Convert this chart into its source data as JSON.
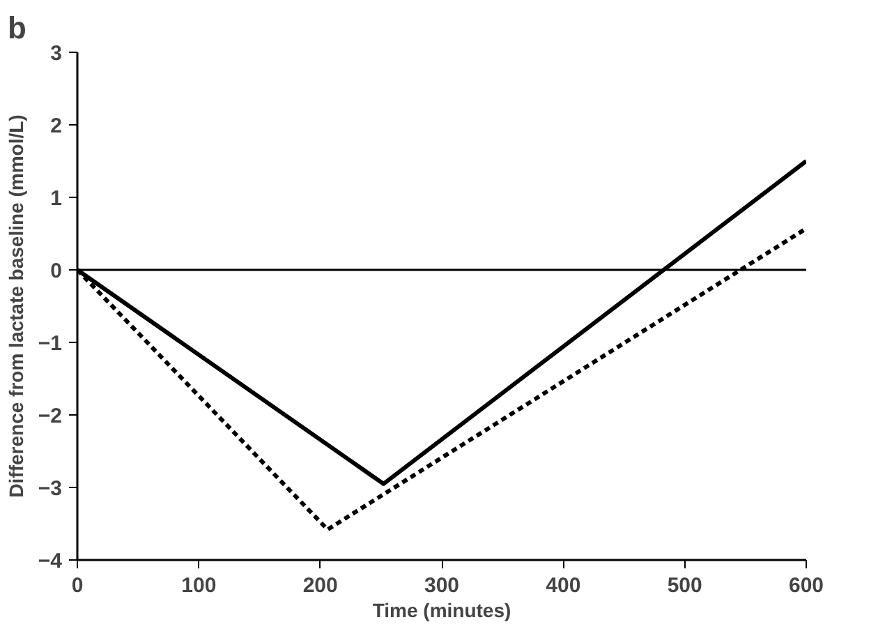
{
  "chart_data": {
    "type": "line",
    "title": "b",
    "xlabel": "Time (minutes)",
    "ylabel": "Difference from lactate baseline (mmol/L)",
    "xlim": [
      0,
      600
    ],
    "ylim": [
      -4,
      3
    ],
    "xticks": [
      0,
      100,
      200,
      300,
      400,
      500,
      600
    ],
    "yticks": [
      -4,
      -3,
      -2,
      -1,
      0,
      1,
      2,
      3
    ],
    "grid": false,
    "marker": "none",
    "ref_lines": [
      {
        "axis": "y",
        "value": 0,
        "color": "#000000"
      }
    ],
    "series": [
      {
        "color": "#000000",
        "line_style": "solid",
        "x": [
          0,
          252,
          600
        ],
        "values": [
          0,
          -2.95,
          1.5
        ]
      },
      {
        "color": "#000000",
        "line_style": "dashed",
        "x": [
          0,
          206,
          600
        ],
        "values": [
          0,
          -3.58,
          0.57
        ]
      }
    ]
  }
}
